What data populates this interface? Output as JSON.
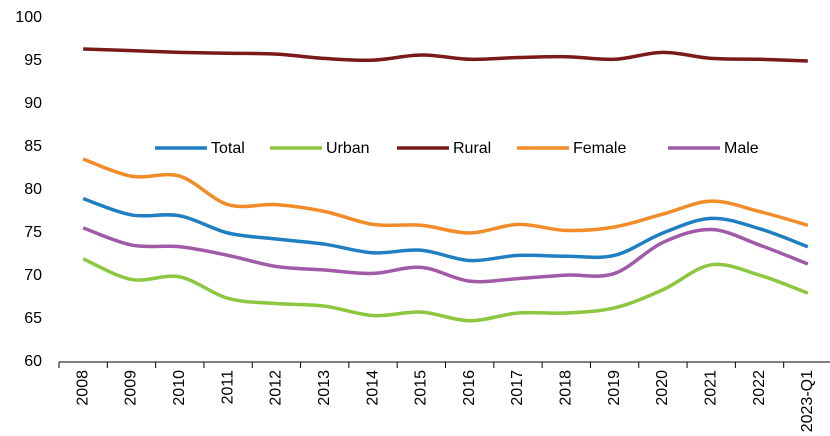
{
  "chart_data": {
    "type": "line",
    "categories": [
      "2008",
      "2009",
      "2010",
      "2011",
      "2012",
      "2013",
      "2014",
      "2015",
      "2016",
      "2017",
      "2018",
      "2019",
      "2020",
      "2021",
      "2022",
      "2023-Q1"
    ],
    "series": [
      {
        "name": "Total",
        "color": "#1f7fc1",
        "values": [
          79.0,
          77.1,
          77.0,
          75.0,
          74.3,
          73.7,
          72.7,
          73.0,
          71.8,
          72.4,
          72.3,
          72.4,
          75.0,
          76.7,
          75.5,
          73.4
        ]
      },
      {
        "name": "Urban",
        "color": "#8dc63f",
        "values": [
          72.0,
          69.6,
          69.9,
          67.4,
          66.8,
          66.5,
          65.4,
          65.8,
          64.8,
          65.7,
          65.7,
          66.3,
          68.4,
          71.3,
          70.1,
          68.0
        ]
      },
      {
        "name": "Rural",
        "color": "#7b1a1a",
        "values": [
          96.4,
          96.2,
          96.0,
          95.9,
          95.8,
          95.3,
          95.1,
          95.7,
          95.2,
          95.4,
          95.5,
          95.2,
          96.0,
          95.3,
          95.2,
          95.0
        ]
      },
      {
        "name": "Female",
        "color": "#f28c28",
        "values": [
          83.6,
          81.6,
          81.6,
          78.3,
          78.3,
          77.5,
          76.0,
          75.9,
          75.0,
          76.0,
          75.3,
          75.7,
          77.2,
          78.7,
          77.5,
          75.9
        ]
      },
      {
        "name": "Male",
        "color": "#a05aa8",
        "values": [
          75.6,
          73.6,
          73.4,
          72.4,
          71.1,
          70.7,
          70.3,
          71.0,
          69.4,
          69.7,
          70.1,
          70.3,
          73.9,
          75.4,
          73.6,
          71.4
        ]
      }
    ],
    "ylim": [
      60,
      100
    ],
    "yticks": [
      60,
      65,
      70,
      75,
      80,
      85,
      90,
      95,
      100
    ],
    "legend": "top-center"
  }
}
